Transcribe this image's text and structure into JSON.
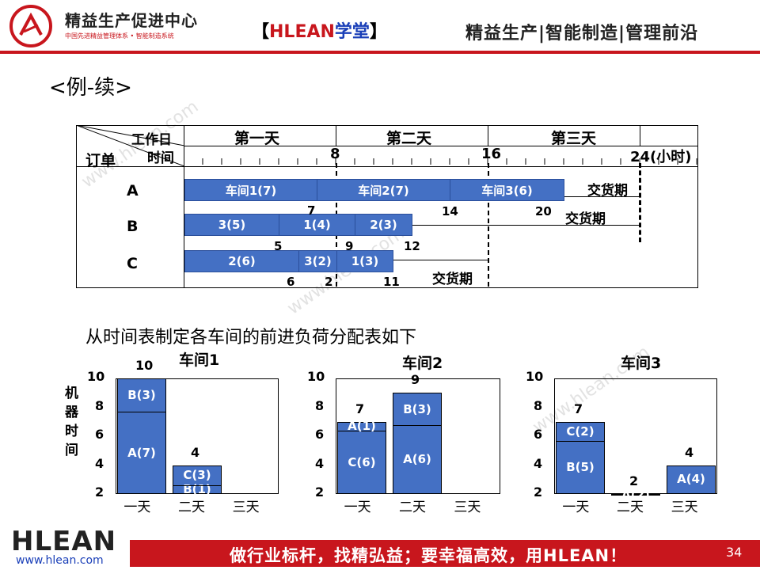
{
  "header": {
    "logo_title": "精益生产促进中心",
    "logo_subtitle": "中国先进精益管理体系 • 智能制造系统",
    "brand_bracket_left": "【",
    "brand_name": "HLEAN",
    "brand_cn": "学堂",
    "brand_bracket_right": "】",
    "slogan": "精益生产|智能制造|管理前沿"
  },
  "title": "<例-续>",
  "schedule": {
    "corner": {
      "workday": "工作日",
      "time": "时间",
      "order": "订单"
    },
    "days": [
      "第一天",
      "第二天",
      "第三天"
    ],
    "hour_ticks": [
      "8",
      "16",
      "24(小时)"
    ],
    "orders": [
      "A",
      "B",
      "C"
    ],
    "bars": {
      "A": [
        "车间1(7)",
        "车间2(7)",
        "车间3(6)"
      ],
      "B": [
        "3(5)",
        "1(4)",
        "2(3)"
      ],
      "C": [
        "2(6)",
        "3(2)",
        "1(3)"
      ]
    },
    "numbers": {
      "A": [
        "14",
        "20"
      ],
      "B": [
        "7",
        "5",
        "9",
        "12"
      ],
      "C": [
        "6",
        "2",
        "11"
      ]
    },
    "due_label": "交货期"
  },
  "caption": "从时间表制定各车间的前进负荷分配表如下",
  "charts": {
    "y_axis_label": [
      "机",
      "器",
      "时",
      "间"
    ],
    "y_ticks": [
      "10",
      "8",
      "6",
      "4",
      "2"
    ],
    "x_labels": [
      "一天",
      "二天",
      "三天"
    ],
    "items": [
      {
        "title": "车间1",
        "totals": [
          "10",
          "4"
        ]
      },
      {
        "title": "车间2",
        "totals": [
          "7",
          "9"
        ]
      },
      {
        "title": "车间3",
        "totals": [
          "7",
          "2",
          "4"
        ]
      }
    ]
  },
  "chart_data": [
    {
      "type": "bar",
      "title": "车间1",
      "categories": [
        "一天",
        "二天",
        "三天"
      ],
      "series": [
        {
          "segments": [
            [
              "A(7)",
              7
            ],
            [
              "B(3)",
              3
            ]
          ]
        },
        {
          "segments": [
            [
              "B(1)",
              1
            ],
            [
              "C(3)",
              3
            ]
          ]
        },
        {
          "segments": []
        }
      ],
      "totals": [
        10,
        4,
        0
      ],
      "ylim": [
        2,
        10
      ]
    },
    {
      "type": "bar",
      "title": "车间2",
      "categories": [
        "一天",
        "二天",
        "三天"
      ],
      "series": [
        {
          "segments": [
            [
              "C(6)",
              6
            ],
            [
              "A(1)",
              1
            ]
          ]
        },
        {
          "segments": [
            [
              "A(6)",
              6
            ],
            [
              "B(3)",
              3
            ]
          ]
        },
        {
          "segments": []
        }
      ],
      "totals": [
        7,
        9,
        0
      ],
      "ylim": [
        2,
        10
      ]
    },
    {
      "type": "bar",
      "title": "车间3",
      "categories": [
        "一天",
        "二天",
        "三天"
      ],
      "series": [
        {
          "segments": [
            [
              "B(5)",
              5
            ],
            [
              "C(2)",
              2
            ]
          ]
        },
        {
          "segments": [
            [
              "A(2)",
              2
            ]
          ]
        },
        {
          "segments": [
            [
              "A(4)",
              4
            ]
          ]
        }
      ],
      "totals": [
        7,
        2,
        4
      ],
      "ylim": [
        2,
        10
      ]
    }
  ],
  "footer": {
    "brand": "HLEAN",
    "website": "www.hlean.com",
    "slogan": "做行业标杆，找精弘益；要幸福高效，用HLEAN！",
    "page": "34"
  },
  "watermark": "www.hlean.com"
}
